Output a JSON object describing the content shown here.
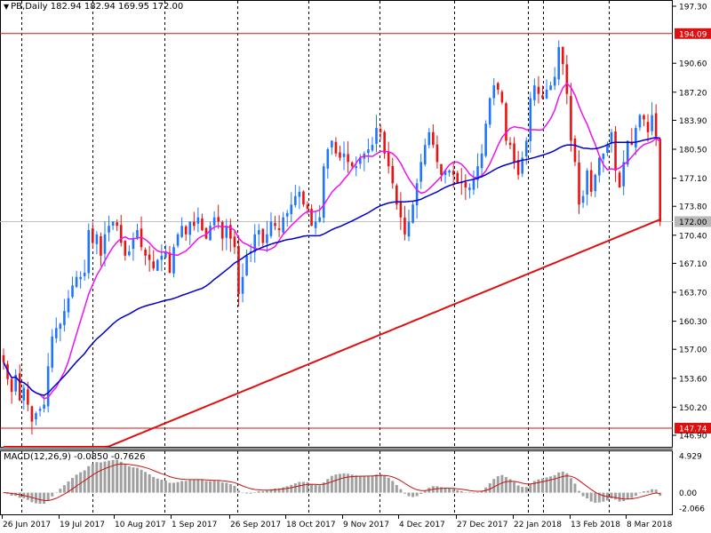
{
  "header": {
    "symbol": "PB,Daily",
    "ohlc": "182.94 182.94 169.95 172.00"
  },
  "macd": {
    "title": "MACD(12,26,9) -0.0850 -0.7626",
    "scale": [
      "4.929",
      "0.00",
      "-2.066"
    ]
  },
  "colors": {
    "up": "#1f75fe",
    "down": "#e81313",
    "sma_fast": "#ee12ee",
    "sma_mid": "#0000cc",
    "sma_slow": "#dd1111",
    "grid": "#000000",
    "hline": "#dd1111",
    "histogram": "#a0a0a0",
    "signal": "#cc1111",
    "current_price_bg": "#b8b8b8"
  },
  "chart_data": {
    "type": "candlestick",
    "title": "PB,Daily",
    "ylim": [
      146.9,
      197.3
    ],
    "y_ticks": [
      "197.30",
      "194.09",
      "190.60",
      "187.20",
      "183.90",
      "180.50",
      "177.10",
      "173.80",
      "172.00",
      "170.40",
      "167.10",
      "163.70",
      "160.30",
      "157.00",
      "153.60",
      "150.20",
      "147.74",
      "146.90"
    ],
    "x_ticks": [
      "26 Jun 2017",
      "19 Jul 2017",
      "10 Aug 2017",
      "1 Sep 2017",
      "26 Sep 2017",
      "18 Oct 2017",
      "9 Nov 2017",
      "4 Dec 2017",
      "27 Dec 2017",
      "22 Jan 2018",
      "13 Feb 2018",
      "8 Mar 2018"
    ],
    "horizontal_lines": [
      {
        "label": "194.09",
        "value": 194.09
      },
      {
        "label": "147.74",
        "value": 147.74
      }
    ],
    "current_price": {
      "label": "172.00",
      "value": 172.0
    },
    "grid": "vertical dashed",
    "closes": [
      155.5,
      153.5,
      152.0,
      154.0,
      151.0,
      152.5,
      150.5,
      148.5,
      149.5,
      150.0,
      150.5,
      155.0,
      158.5,
      159.5,
      160.0,
      161.5,
      163.0,
      164.5,
      165.5,
      165.5,
      166.0,
      171.0,
      169.5,
      170.5,
      168.0,
      170.5,
      171.5,
      172.0,
      171.5,
      169.5,
      168.0,
      168.5,
      170.0,
      171.0,
      169.0,
      168.0,
      167.5,
      166.5,
      167.5,
      168.0,
      168.5,
      166.0,
      169.0,
      170.5,
      171.5,
      170.5,
      172.0,
      171.5,
      172.5,
      171.0,
      170.0,
      171.5,
      172.5,
      172.0,
      170.0,
      171.5,
      170.0,
      169.0,
      163.5,
      165.5,
      168.0,
      168.5,
      170.5,
      171.0,
      169.5,
      170.5,
      172.0,
      171.5,
      171.0,
      172.5,
      173.0,
      174.0,
      175.0,
      175.5,
      174.0,
      173.5,
      171.5,
      172.0,
      172.5,
      178.5,
      180.5,
      181.5,
      180.0,
      179.5,
      180.0,
      179.0,
      178.5,
      178.5,
      179.5,
      180.0,
      180.5,
      181.0,
      183.0,
      182.5,
      180.0,
      178.5,
      176.5,
      174.0,
      172.5,
      170.5,
      172.0,
      174.0,
      176.5,
      179.0,
      181.0,
      182.5,
      181.0,
      179.0,
      177.5,
      178.0,
      178.0,
      177.5,
      176.5,
      176.5,
      176.0,
      176.0,
      177.0,
      178.5,
      180.0,
      183.5,
      186.5,
      188.0,
      187.5,
      186.0,
      181.5,
      181.0,
      179.0,
      177.5,
      179.5,
      181.5,
      186.5,
      188.0,
      187.0,
      186.5,
      187.5,
      188.0,
      189.0,
      192.5,
      190.5,
      187.0,
      181.5,
      179.0,
      174.0,
      175.0,
      178.0,
      175.5,
      177.5,
      179.5,
      180.0,
      181.0,
      182.5,
      178.0,
      176.0,
      179.0,
      181.5,
      181.0,
      183.0,
      184.5,
      184.0,
      182.5,
      184.5,
      182.0,
      172.0
    ],
    "sma_fast_len": 10,
    "sma_mid_len": 50,
    "sma_slow_len": 200
  }
}
